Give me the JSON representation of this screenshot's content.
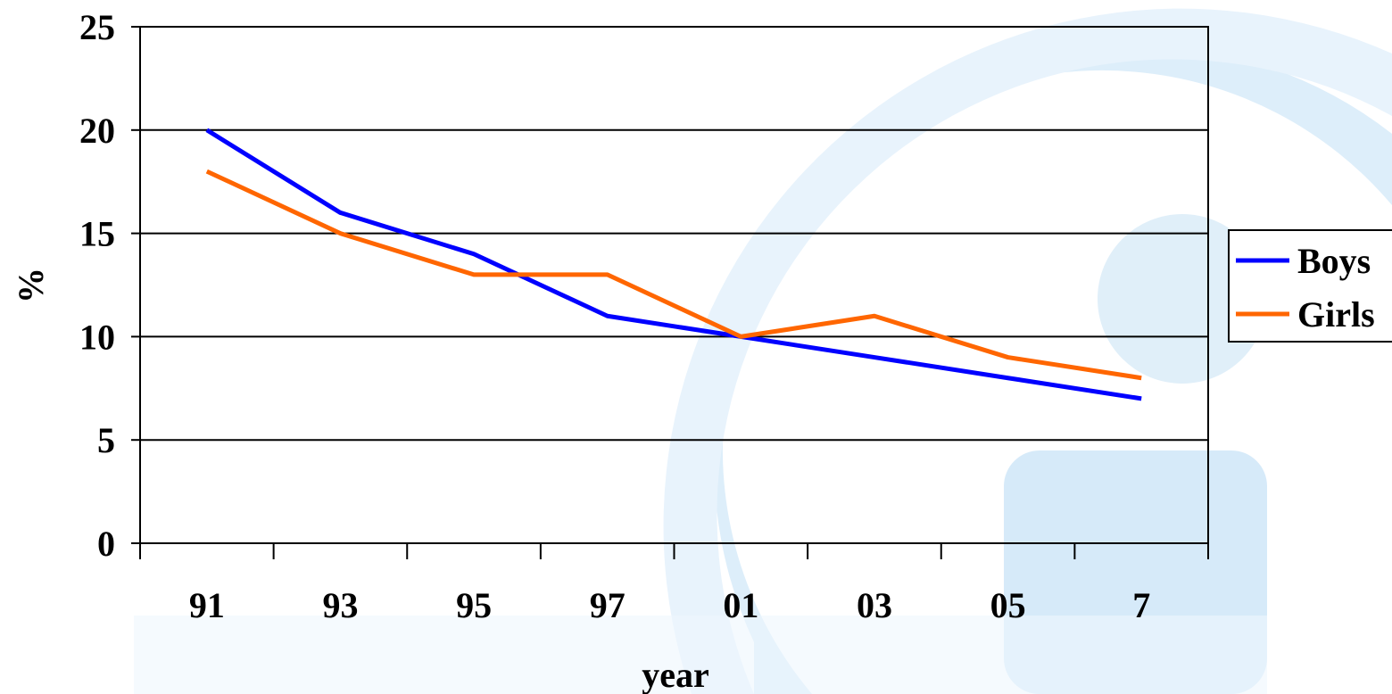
{
  "chart_data": {
    "type": "line",
    "title": "",
    "xlabel": "year",
    "ylabel": "%",
    "categories": [
      "91",
      "93",
      "95",
      "97",
      "01",
      "03",
      "05",
      "7"
    ],
    "ylim": [
      0,
      25
    ],
    "yticks": [
      "0",
      "5",
      "10",
      "15",
      "20",
      "25"
    ],
    "grid": "horizontal",
    "legend_position": "right",
    "series": [
      {
        "name": "Boys",
        "color": "#0000ff",
        "values": [
          20,
          16,
          14,
          11,
          10,
          9,
          8,
          7
        ]
      },
      {
        "name": "Girls",
        "color": "#ff6600",
        "values": [
          18,
          15,
          13,
          13,
          10,
          11,
          9,
          8
        ]
      }
    ]
  },
  "background": {
    "watermark_color": "#cfe6f8",
    "icon": "logo-watermark-icon"
  }
}
